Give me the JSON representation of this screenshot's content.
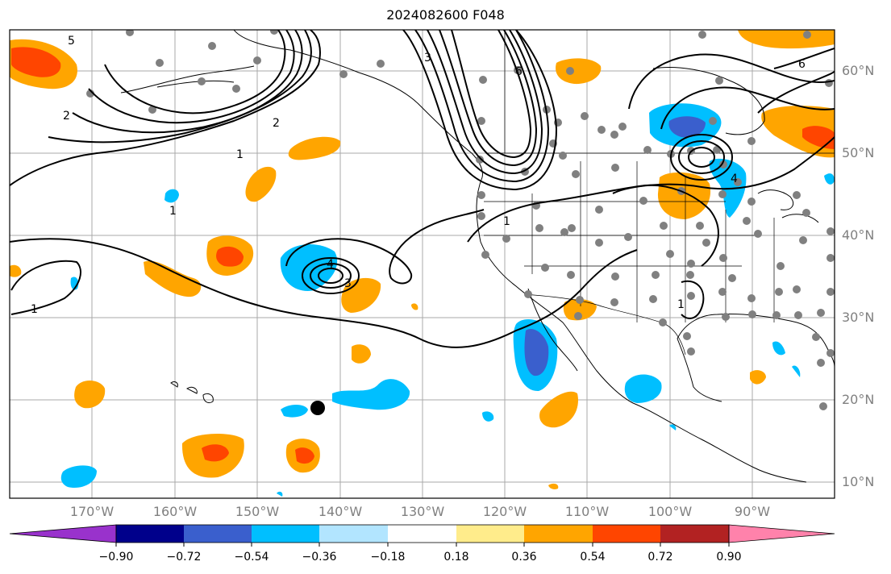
{
  "title": "2024082600 F048",
  "map": {
    "projection": "equirectangular",
    "lon_range": [
      -180,
      -80
    ],
    "lat_range": [
      8,
      65
    ],
    "grid": true
  },
  "lat_labels": [
    "60°N",
    "50°N",
    "40°N",
    "30°N",
    "20°N",
    "10°N"
  ],
  "lon_labels": [
    "170°W",
    "160°W",
    "150°W",
    "140°W",
    "130°W",
    "120°W",
    "110°W",
    "100°W",
    "90°W"
  ],
  "contour_labels": [
    "5",
    "2",
    "1",
    "4",
    "3",
    "2",
    "6",
    "1",
    "1",
    "1",
    "1",
    "4",
    "3",
    "6"
  ],
  "colorbar": {
    "tick_labels": [
      "−0.90",
      "−0.72",
      "−0.54",
      "−0.36",
      "−0.18",
      "0.18",
      "0.36",
      "0.54",
      "0.72",
      "0.90"
    ],
    "colors": {
      "under": "#9932cc",
      "neg_090_072": "#00008b",
      "neg_072_054": "#3a5fcd",
      "neg_054_036": "#00bfff",
      "neg_036_018": "#b2e5ff",
      "neutral": "#ffffff",
      "pos_018_036": "#ffec8b",
      "pos_036_054": "#ffa500",
      "pos_054_072": "#ff4500",
      "pos_072_090": "#b22222",
      "over": "#ff82ab"
    }
  }
}
